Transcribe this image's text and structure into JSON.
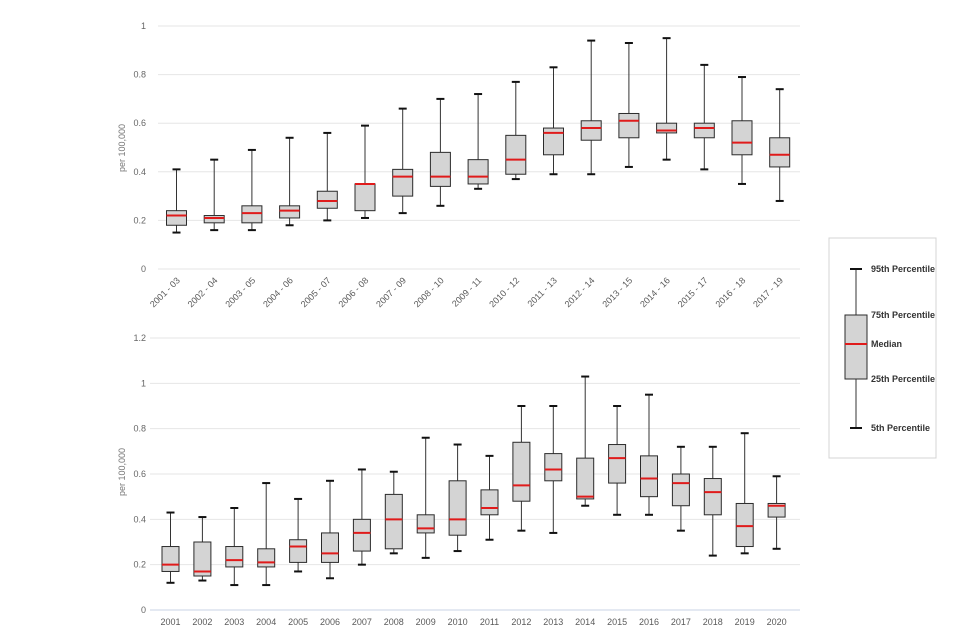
{
  "chart_data": [
    {
      "type": "boxplot",
      "title": "",
      "xlabel": "",
      "ylabel": "per 100,000",
      "ylim": [
        0,
        1
      ],
      "yticks": [
        "0",
        "0.2",
        "0.4",
        "0.6",
        "0.8",
        "1"
      ],
      "grid": true,
      "x_label_rotation": "diagonal",
      "categories": [
        "2001 - 03",
        "2002 - 04",
        "2003 - 05",
        "2004 - 06",
        "2005 - 07",
        "2006 - 08",
        "2007 - 09",
        "2008 - 10",
        "2009 - 11",
        "2010 - 12",
        "2011 - 13",
        "2012 - 14",
        "2013 - 15",
        "2014 - 16",
        "2015 - 17",
        "2016 - 18",
        "2017 - 19"
      ],
      "series": [
        {
          "name": "5th Percentile",
          "values": [
            0.15,
            0.16,
            0.16,
            0.18,
            0.2,
            0.21,
            0.23,
            0.26,
            0.33,
            0.37,
            0.39,
            0.39,
            0.42,
            0.45,
            0.41,
            0.35,
            0.28
          ]
        },
        {
          "name": "25th Percentile",
          "values": [
            0.18,
            0.19,
            0.19,
            0.21,
            0.25,
            0.24,
            0.3,
            0.34,
            0.35,
            0.39,
            0.47,
            0.53,
            0.54,
            0.56,
            0.54,
            0.47,
            0.42
          ]
        },
        {
          "name": "Median",
          "values": [
            0.22,
            0.21,
            0.23,
            0.24,
            0.28,
            0.35,
            0.38,
            0.38,
            0.38,
            0.45,
            0.56,
            0.58,
            0.61,
            0.57,
            0.58,
            0.52,
            0.47
          ]
        },
        {
          "name": "75th Percentile",
          "values": [
            0.24,
            0.22,
            0.26,
            0.26,
            0.32,
            0.35,
            0.41,
            0.48,
            0.45,
            0.55,
            0.58,
            0.61,
            0.64,
            0.6,
            0.6,
            0.61,
            0.54
          ]
        },
        {
          "name": "95th Percentile",
          "values": [
            0.41,
            0.45,
            0.49,
            0.54,
            0.56,
            0.59,
            0.66,
            0.7,
            0.72,
            0.77,
            0.83,
            0.94,
            0.93,
            0.95,
            0.84,
            0.79,
            0.74
          ]
        }
      ]
    },
    {
      "type": "boxplot",
      "title": "",
      "xlabel": "",
      "ylabel": "per 100,000",
      "ylim": [
        0,
        1.2
      ],
      "yticks": [
        "0",
        "0.2",
        "0.4",
        "0.6",
        "0.8",
        "1",
        "1.2"
      ],
      "grid": true,
      "x_label_rotation": "horizontal",
      "categories": [
        "2001",
        "2002",
        "2003",
        "2004",
        "2005",
        "2006",
        "2007",
        "2008",
        "2009",
        "2010",
        "2011",
        "2012",
        "2013",
        "2014",
        "2015",
        "2016",
        "2017",
        "2018",
        "2019",
        "2020"
      ],
      "series": [
        {
          "name": "5th Percentile",
          "values": [
            0.12,
            0.13,
            0.11,
            0.11,
            0.17,
            0.14,
            0.2,
            0.25,
            0.23,
            0.26,
            0.31,
            0.35,
            0.34,
            0.46,
            0.42,
            0.42,
            0.35,
            0.24,
            0.25,
            0.27
          ]
        },
        {
          "name": "25th Percentile",
          "values": [
            0.17,
            0.15,
            0.19,
            0.19,
            0.21,
            0.21,
            0.26,
            0.27,
            0.34,
            0.33,
            0.42,
            0.48,
            0.57,
            0.49,
            0.56,
            0.5,
            0.46,
            0.42,
            0.28,
            0.41
          ]
        },
        {
          "name": "Median",
          "values": [
            0.2,
            0.17,
            0.22,
            0.21,
            0.28,
            0.25,
            0.34,
            0.4,
            0.36,
            0.4,
            0.45,
            0.55,
            0.62,
            0.5,
            0.67,
            0.58,
            0.56,
            0.52,
            0.37,
            0.46
          ]
        },
        {
          "name": "75th Percentile",
          "values": [
            0.28,
            0.3,
            0.28,
            0.27,
            0.31,
            0.34,
            0.4,
            0.51,
            0.42,
            0.57,
            0.53,
            0.74,
            0.69,
            0.67,
            0.73,
            0.68,
            0.6,
            0.58,
            0.47,
            0.47
          ]
        },
        {
          "name": "95th Percentile",
          "values": [
            0.43,
            0.41,
            0.45,
            0.56,
            0.49,
            0.57,
            0.62,
            0.61,
            0.76,
            0.73,
            0.68,
            0.9,
            0.9,
            1.03,
            0.9,
            0.95,
            0.72,
            0.72,
            0.78,
            0.59
          ]
        }
      ]
    }
  ],
  "legend": {
    "p95": "95th Percentile",
    "p75": "75th Percentile",
    "median": "Median",
    "p25": "25th Percentile",
    "p5": "5th Percentile"
  },
  "colors": {
    "median": "#e01b1b",
    "box_fill": "#d4d4d4",
    "box_stroke": "#2b2b2b"
  }
}
